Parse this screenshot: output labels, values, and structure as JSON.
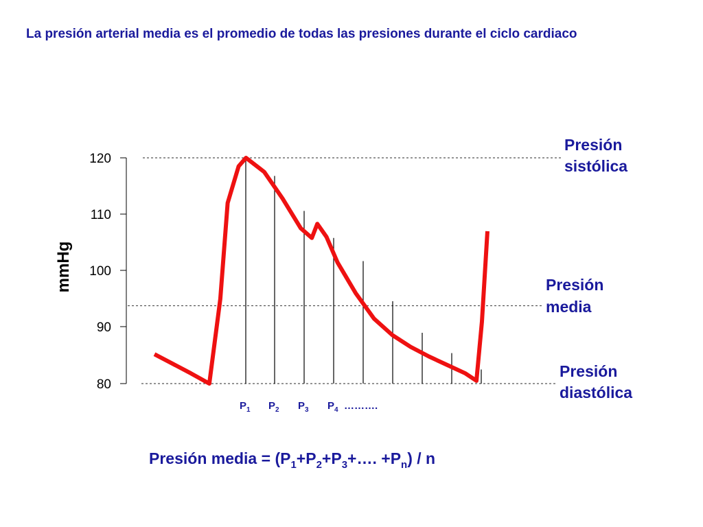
{
  "title": "La presión arterial media es el promedio de todas las presiones durante el ciclo cardiaco",
  "chart_data": {
    "type": "line",
    "ylabel": "mmHg",
    "ylim": [
      80,
      120
    ],
    "yticks": [
      "120",
      "110",
      "100",
      "90",
      "80"
    ],
    "grid": false,
    "colors": {
      "curve": "#ee1111",
      "text": "#1a1a9c"
    },
    "reference_lines": [
      {
        "key": "sys",
        "label": [
          "Presión",
          "sistólica"
        ],
        "value": 120
      },
      {
        "key": "mean",
        "label": [
          "Presión",
          "media"
        ],
        "value": 93.8
      },
      {
        "key": "dia",
        "label": [
          "Presión",
          "diastólica"
        ],
        "value": 80
      }
    ],
    "series": [
      {
        "values": [
          [
            0.0,
            85.2
          ],
          [
            0.05,
            83.5
          ],
          [
            0.1,
            81.8
          ],
          [
            0.15,
            80.0
          ],
          [
            0.18,
            95.0
          ],
          [
            0.2,
            112.0
          ],
          [
            0.23,
            118.5
          ],
          [
            0.25,
            120.0
          ],
          [
            0.3,
            117.5
          ],
          [
            0.35,
            112.8
          ],
          [
            0.4,
            107.5
          ],
          [
            0.43,
            105.8
          ],
          [
            0.445,
            108.3
          ],
          [
            0.47,
            106.0
          ],
          [
            0.5,
            101.5
          ],
          [
            0.55,
            96.0
          ],
          [
            0.6,
            91.5
          ],
          [
            0.65,
            88.6
          ],
          [
            0.7,
            86.5
          ],
          [
            0.75,
            84.8
          ],
          [
            0.8,
            83.3
          ],
          [
            0.85,
            81.8
          ],
          [
            0.88,
            80.5
          ],
          [
            0.895,
            91.0
          ],
          [
            0.91,
            107.0
          ]
        ]
      }
    ],
    "samples": [
      {
        "label": "P",
        "sub": "1",
        "value": 120.0
      },
      {
        "label": "P",
        "sub": "2",
        "value": 116.8
      },
      {
        "label": "P",
        "sub": "3",
        "value": 110.6
      },
      {
        "label": "P",
        "sub": "4",
        "value": 105.8
      },
      {
        "value": 101.7
      },
      {
        "value": 94.6
      },
      {
        "value": 89.0
      },
      {
        "value": 85.4
      },
      {
        "value": 82.5
      }
    ],
    "samples_ellipsis": "……….",
    "formula": {
      "prefix": "Presión media = (P",
      "s1": "1",
      "t1": "+P",
      "s2": "2",
      "t2": "+P",
      "s3": "3",
      "t3": "+….  +P",
      "sn": "n",
      "suffix": ") / n"
    }
  }
}
